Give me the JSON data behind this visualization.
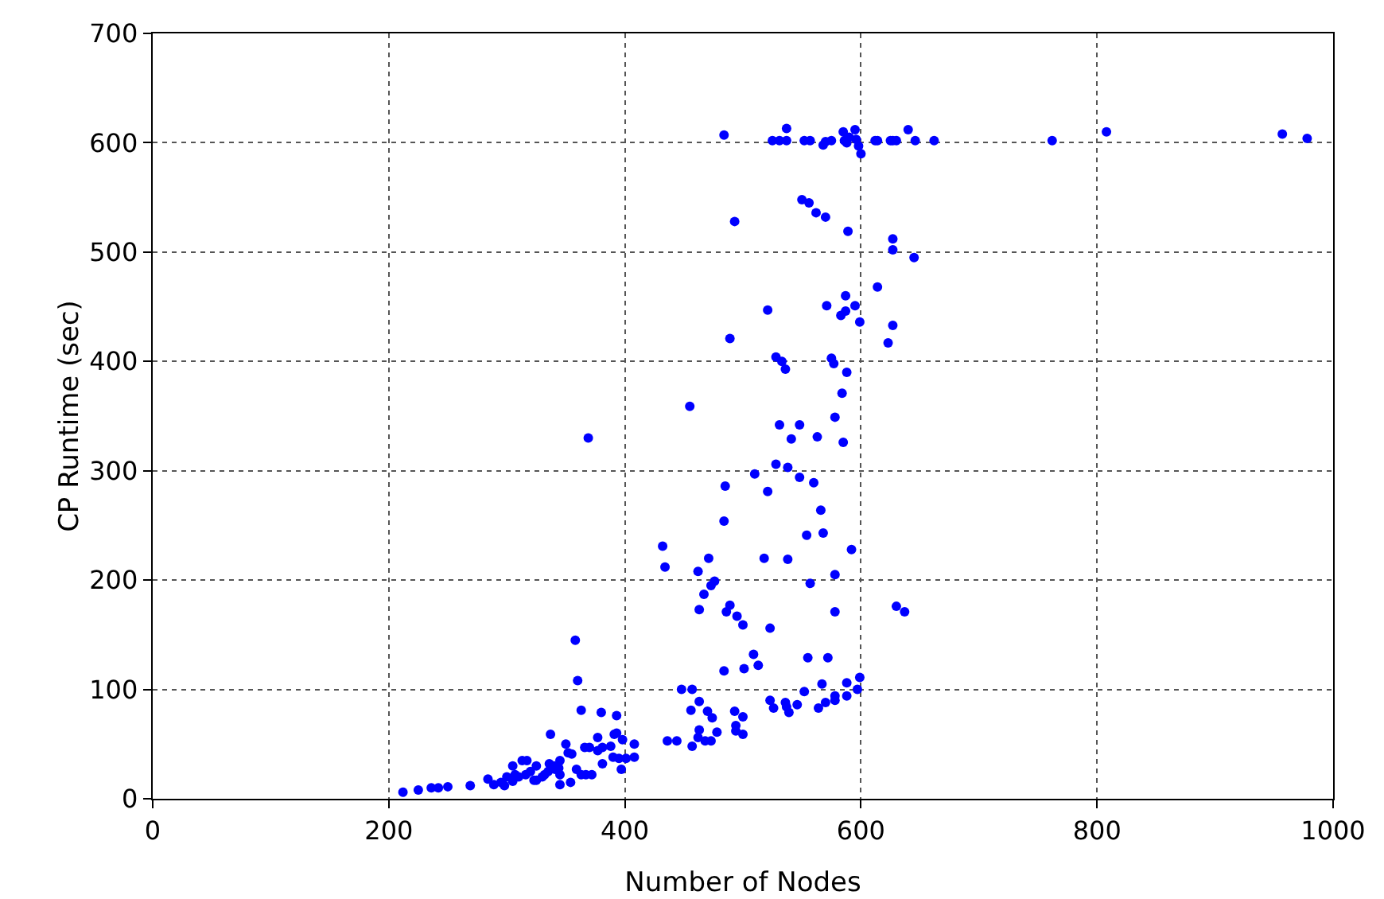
{
  "chart_data": {
    "type": "scatter",
    "xlabel": "Number of Nodes",
    "ylabel": "CP Runtime (sec)",
    "xlim": [
      0,
      1000
    ],
    "xticks": [
      0,
      200,
      400,
      600,
      800,
      1000
    ],
    "ylim": [
      0,
      700
    ],
    "yticks": [
      0,
      100,
      200,
      300,
      400,
      500,
      600,
      700
    ],
    "grid": true,
    "marker": "circle",
    "series": [
      {
        "color": "#0000ff",
        "x": [
          484,
          525,
          531,
          537,
          537,
          552,
          557,
          568,
          570,
          575,
          585,
          586,
          588,
          590,
          595,
          596,
          598,
          600,
          612,
          614,
          625,
          627,
          630,
          640,
          646,
          662,
          762,
          808,
          957,
          978,
          493,
          550,
          556,
          562,
          570,
          589,
          627,
          627,
          645,
          614,
          521,
          571,
          587,
          583,
          587,
          595,
          599,
          627,
          623,
          489,
          528,
          533,
          536,
          575,
          577,
          588,
          584,
          455,
          531,
          548,
          578,
          541,
          563,
          585,
          528,
          538,
          510,
          548,
          560,
          485,
          521,
          566,
          484,
          554,
          568,
          432,
          434,
          592,
          471,
          518,
          538,
          462,
          476,
          473,
          467,
          557,
          578,
          463,
          489,
          486,
          495,
          500,
          578,
          523,
          630,
          637,
          509,
          513,
          501,
          484,
          555,
          572,
          448,
          457,
          463,
          456,
          470,
          474,
          493,
          500,
          463,
          462,
          457,
          468,
          473,
          436,
          444,
          478,
          494,
          494,
          500,
          523,
          526,
          536,
          537,
          539,
          546,
          552,
          564,
          570,
          578,
          578,
          588,
          567,
          588,
          599,
          597,
          408,
          408,
          358,
          360,
          363,
          380,
          393,
          337,
          212,
          225,
          236,
          242,
          250,
          269,
          284,
          289,
          295,
          298,
          305,
          313,
          317,
          307,
          316,
          323,
          332,
          336,
          344,
          350,
          352,
          355,
          366,
          370,
          377,
          388,
          391,
          393,
          398,
          377,
          381,
          341,
          345,
          359,
          363,
          372,
          381,
          390,
          395,
          397,
          401,
          325,
          345,
          354,
          367,
          369,
          300,
          305,
          310,
          320,
          325,
          330,
          335,
          340,
          345
        ],
        "values": [
          607,
          602,
          602,
          613,
          602,
          602,
          602,
          598,
          601,
          602,
          610,
          602,
          600,
          605,
          612,
          603,
          597,
          590,
          602,
          602,
          602,
          602,
          602,
          612,
          602,
          602,
          602,
          610,
          608,
          604,
          528,
          548,
          545,
          536,
          532,
          519,
          512,
          502,
          495,
          468,
          447,
          451,
          460,
          442,
          446,
          451,
          436,
          433,
          417,
          421,
          404,
          400,
          393,
          403,
          398,
          390,
          371,
          359,
          342,
          342,
          349,
          329,
          331,
          326,
          306,
          303,
          297,
          294,
          289,
          286,
          281,
          264,
          254,
          241,
          243,
          231,
          212,
          228,
          220,
          220,
          219,
          208,
          199,
          195,
          187,
          197,
          205,
          173,
          177,
          171,
          167,
          159,
          171,
          156,
          176,
          171,
          132,
          122,
          119,
          117,
          129,
          129,
          100,
          100,
          89,
          81,
          80,
          74,
          80,
          75,
          63,
          56,
          48,
          53,
          53,
          53,
          53,
          61,
          67,
          62,
          59,
          90,
          83,
          88,
          84,
          79,
          86,
          98,
          83,
          88,
          94,
          90,
          94,
          105,
          106,
          111,
          100,
          50,
          38,
          145,
          108,
          81,
          79,
          76,
          59,
          6,
          8,
          10,
          10,
          11,
          12,
          18,
          13,
          15,
          12,
          30,
          35,
          35,
          22,
          22,
          17,
          22,
          32,
          28,
          50,
          42,
          41,
          47,
          47,
          56,
          48,
          59,
          60,
          54,
          44,
          47,
          27,
          22,
          27,
          22,
          22,
          32,
          38,
          37,
          27,
          37,
          17,
          13,
          15,
          22,
          330,
          20,
          16,
          20,
          25,
          30,
          20,
          25,
          30,
          35
        ]
      }
    ]
  }
}
